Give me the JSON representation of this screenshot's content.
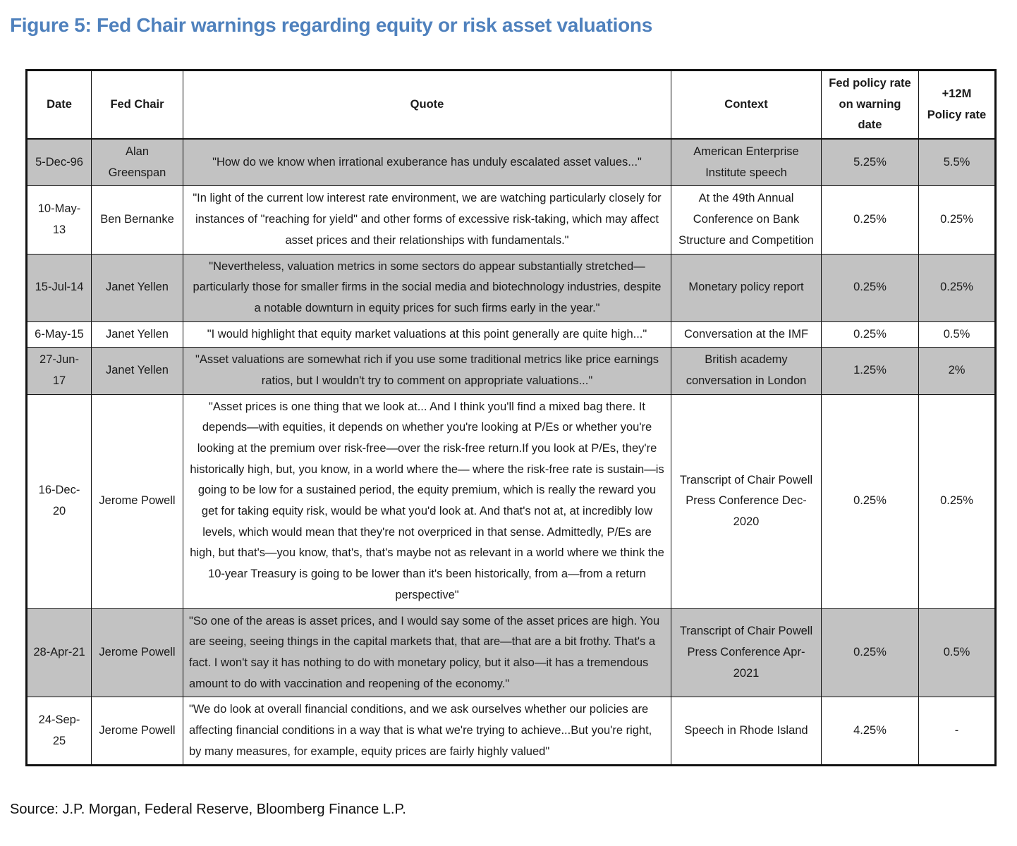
{
  "figure_title": "Figure 5: Fed Chair warnings regarding equity or risk asset valuations",
  "source_line": "Source: J.P. Morgan, Federal Reserve, Bloomberg Finance L.P.",
  "colors": {
    "title_blue": "#4f81bd",
    "row_shade_gray": "#c2c2c2",
    "border_black": "#111111"
  },
  "table": {
    "columns": [
      {
        "key": "date",
        "label": "Date"
      },
      {
        "key": "chair",
        "label": "Fed Chair"
      },
      {
        "key": "quote",
        "label": "Quote"
      },
      {
        "key": "context",
        "label": "Context"
      },
      {
        "key": "rate_on_warning",
        "label": "Fed policy rate on warning date"
      },
      {
        "key": "rate_12m",
        "label": "+12M Policy rate"
      }
    ],
    "rows": [
      {
        "date": "5-Dec-96",
        "chair": "Alan Greenspan",
        "quote": "\"How do we know when irrational exuberance has unduly escalated asset values...\"",
        "context": "American Enterprise Institute speech",
        "rate_on_warning": "5.25%",
        "rate_12m": "5.5%",
        "shaded": true,
        "quote_align": "center"
      },
      {
        "date": "10-May-13",
        "chair": "Ben Bernanke",
        "quote": "\"In light of the current low interest rate environment, we are watching particularly closely for instances of \"reaching for yield\" and other forms of excessive risk-taking, which may affect asset prices and their relationships with fundamentals.\"",
        "context": "At the 49th Annual Conference on Bank Structure and Competition",
        "rate_on_warning": "0.25%",
        "rate_12m": "0.25%",
        "shaded": false,
        "quote_align": "center"
      },
      {
        "date": "15-Jul-14",
        "chair": "Janet Yellen",
        "quote": "\"Nevertheless, valuation metrics in some sectors do appear substantially stretched—particularly those for smaller firms in the social media and biotechnology industries, despite a notable downturn in equity prices for such firms early in the year.\"",
        "context": "Monetary policy report",
        "rate_on_warning": "0.25%",
        "rate_12m": "0.25%",
        "shaded": true,
        "quote_align": "center"
      },
      {
        "date": "6-May-15",
        "chair": "Janet Yellen",
        "quote": "\"I would highlight that equity market valuations at this point generally are quite high...\"",
        "context": "Conversation at the IMF",
        "rate_on_warning": "0.25%",
        "rate_12m": "0.5%",
        "shaded": false,
        "quote_align": "center"
      },
      {
        "date": "27-Jun-17",
        "chair": "Janet Yellen",
        "quote": "\"Asset valuations are somewhat rich if you use some traditional metrics like price earnings ratios, but I wouldn't try to comment on appropriate valuations...\"",
        "context": "British academy conversation in London",
        "rate_on_warning": "1.25%",
        "rate_12m": "2%",
        "shaded": true,
        "quote_align": "center"
      },
      {
        "date": "16-Dec-20",
        "chair": "Jerome Powell",
        "quote": "\"Asset prices is one thing that we look at... And I think you'll find a mixed bag there. It depends—with equities, it depends on whether you're looking at P/Es or whether you're looking at the premium over risk-free—over the risk-free return.If you look at P/Es, they're historically high, but, you know, in a world where the— where the risk-free rate is sustain—is going to be low for a sustained period, the equity premium, which is really the reward you get for taking equity risk, would be what you'd look at. And that's not at, at incredibly low levels, which would mean that they're not overpriced in that sense. Admittedly, P/Es are high, but that's—you know, that's, that's maybe not as relevant in a world where we think the 10-year Treasury is going to be lower than it's been historically, from a—from a return perspective\"",
        "context": "Transcript of Chair Powell Press Conference Dec-2020",
        "rate_on_warning": "0.25%",
        "rate_12m": "0.25%",
        "shaded": false,
        "quote_align": "center"
      },
      {
        "date": "28-Apr-21",
        "chair": "Jerome Powell",
        "quote": "\"So one of the areas is asset prices, and I would say some of the asset prices are high. You are seeing, seeing things in the capital markets that, that are—that are a bit frothy. That's a fact. I won't say it has nothing to do with monetary policy, but it also—it has a tremendous amount to do with vaccination and reopening of the economy.\"",
        "context": "Transcript of Chair Powell Press Conference Apr-2021",
        "rate_on_warning": "0.25%",
        "rate_12m": "0.5%",
        "shaded": true,
        "quote_align": "left"
      },
      {
        "date": "24-Sep-25",
        "chair": "Jerome Powell",
        "quote": "\"We do look at overall financial conditions, and we ask ourselves whether our policies are affecting financial conditions in a way that is what we're trying to achieve...But you're right, by many measures, for example, equity prices are fairly highly valued\"",
        "context": "Speech in Rhode Island",
        "rate_on_warning": "4.25%",
        "rate_12m": "-",
        "shaded": false,
        "quote_align": "left"
      }
    ]
  }
}
